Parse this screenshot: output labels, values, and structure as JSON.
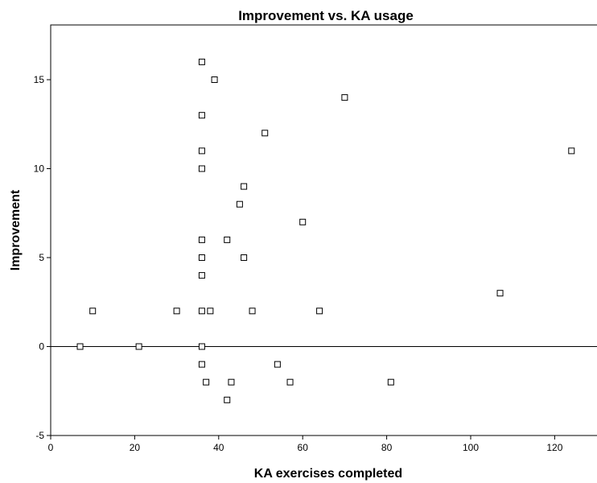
{
  "chart_data": {
    "type": "scatter",
    "title": "Improvement vs. KA usage",
    "xlabel": "KA exercises completed",
    "ylabel": "Improvement",
    "xlim": [
      0,
      130
    ],
    "ylim": [
      -5,
      18
    ],
    "xticks": [
      0,
      20,
      40,
      60,
      80,
      100,
      120
    ],
    "yticks": [
      -5,
      0,
      5,
      10,
      15
    ],
    "reference_line_y": 0,
    "marker": "open-square",
    "grid": false,
    "points": [
      {
        "x": 7,
        "y": 0
      },
      {
        "x": 10,
        "y": 2
      },
      {
        "x": 21,
        "y": 0
      },
      {
        "x": 30,
        "y": 2
      },
      {
        "x": 36,
        "y": 16
      },
      {
        "x": 36,
        "y": 13
      },
      {
        "x": 36,
        "y": 11
      },
      {
        "x": 36,
        "y": 10
      },
      {
        "x": 36,
        "y": 6
      },
      {
        "x": 36,
        "y": 5
      },
      {
        "x": 36,
        "y": 4
      },
      {
        "x": 36,
        "y": 2
      },
      {
        "x": 36,
        "y": 0
      },
      {
        "x": 36,
        "y": -1
      },
      {
        "x": 37,
        "y": -2
      },
      {
        "x": 38,
        "y": 2
      },
      {
        "x": 39,
        "y": 15
      },
      {
        "x": 42,
        "y": 6
      },
      {
        "x": 42,
        "y": -3
      },
      {
        "x": 43,
        "y": -2
      },
      {
        "x": 45,
        "y": 8
      },
      {
        "x": 46,
        "y": 9
      },
      {
        "x": 46,
        "y": 5
      },
      {
        "x": 48,
        "y": 2
      },
      {
        "x": 51,
        "y": 12
      },
      {
        "x": 54,
        "y": -1
      },
      {
        "x": 57,
        "y": -2
      },
      {
        "x": 60,
        "y": 7
      },
      {
        "x": 64,
        "y": 2
      },
      {
        "x": 70,
        "y": 14
      },
      {
        "x": 81,
        "y": -2
      },
      {
        "x": 107,
        "y": 3
      },
      {
        "x": 124,
        "y": 11
      }
    ]
  }
}
